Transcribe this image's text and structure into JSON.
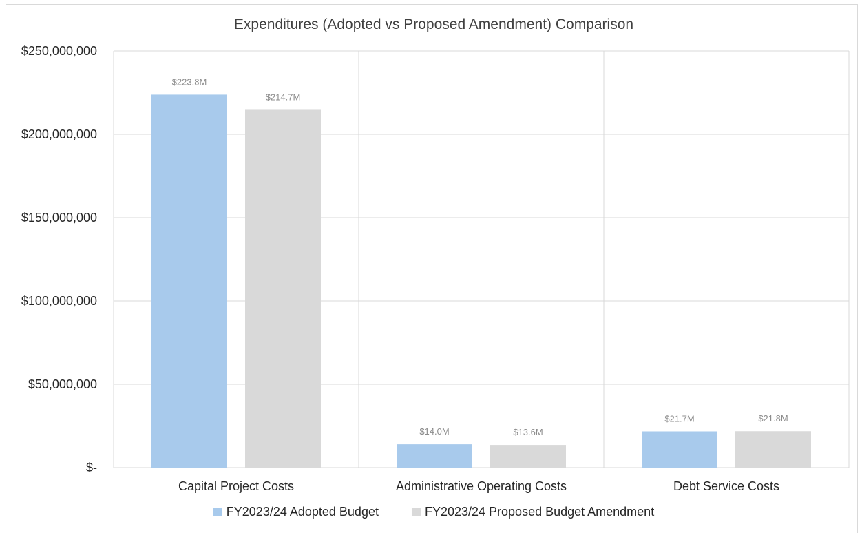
{
  "chart_data": {
    "type": "bar",
    "title": "Expenditures (Adopted vs Proposed Amendment) Comparison",
    "xlabel": "",
    "ylabel": "",
    "categories": [
      "Capital Project Costs",
      "Administrative Operating Costs",
      "Debt Service Costs"
    ],
    "series": [
      {
        "name": "FY2023/24 Adopted Budget",
        "color": "#a8caec",
        "values": [
          223800000,
          14000000,
          21700000
        ],
        "labels": [
          "$223.8M",
          "$14.0M",
          "$21.7M"
        ]
      },
      {
        "name": "FY2023/24 Proposed Budget Amendment",
        "color": "#d9d9d9",
        "values": [
          214700000,
          13600000,
          21800000
        ],
        "labels": [
          "$214.7M",
          "$13.6M",
          "$21.8M"
        ]
      }
    ],
    "ylim": [
      0,
      250000000
    ],
    "yticks": [
      0,
      50000000,
      100000000,
      150000000,
      200000000,
      250000000
    ],
    "ytick_labels": [
      "$-",
      "$50,000,000",
      "$100,000,000",
      "$150,000,000",
      "$200,000,000",
      "$250,000,000"
    ],
    "grid": true,
    "legend_position": "bottom"
  }
}
